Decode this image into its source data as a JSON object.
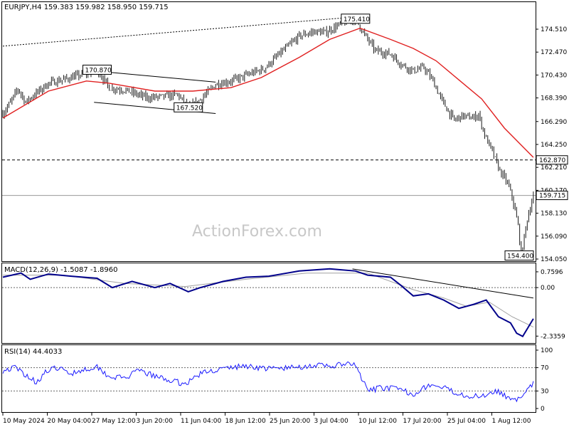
{
  "title": "EURJPY,H4  159.383 159.982 158.950 159.715",
  "watermark": "ActionForex.com",
  "colors": {
    "candle": "#1a1a1a",
    "ma": "#e02020",
    "macd": "#00008b",
    "signal": "#a0a0a0",
    "rsi": "#1a1aff",
    "ref_line": "#000000",
    "watermark": "#c8c8c8"
  },
  "chart_data": [
    {
      "type": "candlestick",
      "name": "EURJPY H4",
      "ylim": [
        154.05,
        176.6
      ],
      "y_ticks": [
        "174.510",
        "172.470",
        "170.430",
        "168.390",
        "166.290",
        "164.250",
        "162.210",
        "160.170",
        "158.130",
        "156.090",
        "154.050"
      ],
      "x_ticks": [
        "10 May 2024",
        "20 May 04:00",
        "27 May 12:00",
        "3 Jun 20:00",
        "11 Jun 04:00",
        "18 Jun 12:00",
        "25 Jun 20:00",
        "3 Jul 04:00",
        "10 Jul 12:00",
        "17 Jul 20:00",
        "25 Jul 04:00",
        "1 Aug 12:00"
      ],
      "key_points": [
        [
          0,
          167.0
        ],
        [
          5,
          168.0
        ],
        [
          10,
          169.2
        ],
        [
          15,
          168.0
        ],
        [
          20,
          168.6
        ],
        [
          30,
          169.7
        ],
        [
          45,
          170.2
        ],
        [
          55,
          170.6
        ],
        [
          62,
          170.87
        ],
        [
          70,
          169.3
        ],
        [
          80,
          169.1
        ],
        [
          95,
          168.4
        ],
        [
          105,
          168.5
        ],
        [
          115,
          168.7
        ],
        [
          122,
          167.52
        ],
        [
          128,
          168.0
        ],
        [
          140,
          169.6
        ],
        [
          150,
          169.9
        ],
        [
          160,
          170.4
        ],
        [
          172,
          171.0
        ],
        [
          182,
          172.3
        ],
        [
          195,
          173.9
        ],
        [
          205,
          174.3
        ],
        [
          212,
          174.2
        ],
        [
          220,
          174.8
        ],
        [
          228,
          175.3
        ],
        [
          232,
          175.41
        ],
        [
          238,
          174.0
        ],
        [
          245,
          172.6
        ],
        [
          255,
          172.3
        ],
        [
          262,
          171.4
        ],
        [
          270,
          170.8
        ],
        [
          277,
          171.1
        ],
        [
          283,
          169.9
        ],
        [
          288,
          168.4
        ],
        [
          293,
          167.2
        ],
        [
          297,
          166.4
        ],
        [
          302,
          166.8
        ],
        [
          309,
          166.6
        ],
        [
          313,
          166.9
        ],
        [
          317,
          165.1
        ],
        [
          322,
          163.6
        ],
        [
          327,
          161.9
        ],
        [
          332,
          160.8
        ],
        [
          335,
          159.6
        ],
        [
          339,
          157.0
        ],
        [
          341,
          154.4
        ],
        [
          345,
          157.6
        ],
        [
          349,
          159.715
        ]
      ],
      "moving_average_points": [
        [
          0,
          166.6
        ],
        [
          30,
          169.0
        ],
        [
          55,
          169.9
        ],
        [
          70,
          169.7
        ],
        [
          100,
          169.0
        ],
        [
          125,
          169.0
        ],
        [
          150,
          169.3
        ],
        [
          170,
          170.2
        ],
        [
          195,
          172.0
        ],
        [
          215,
          173.6
        ],
        [
          235,
          174.6
        ],
        [
          255,
          173.6
        ],
        [
          270,
          172.8
        ],
        [
          285,
          171.7
        ],
        [
          300,
          170.0
        ],
        [
          315,
          168.3
        ],
        [
          330,
          165.7
        ],
        [
          349,
          163.1
        ]
      ],
      "horizontal_levels": [
        {
          "value": 162.87,
          "style": "dashed",
          "label": "162.870"
        },
        {
          "value": 159.715,
          "style": "solid",
          "label": "159.715"
        }
      ],
      "trendlines": [
        {
          "from": [
            0,
            173.0
          ],
          "to": [
            232,
            175.6
          ],
          "style": "dotted"
        },
        {
          "from": [
            60,
            170.8
          ],
          "to": [
            140,
            169.8
          ],
          "style": "solid"
        },
        {
          "from": [
            60,
            168.0
          ],
          "to": [
            140,
            167.0
          ],
          "style": "solid"
        }
      ],
      "annotations": [
        {
          "text": "175.410",
          "x": 232,
          "y": 175.41
        },
        {
          "text": "170.870",
          "x": 62,
          "y": 170.87
        },
        {
          "text": "167.520",
          "x": 122,
          "y": 167.52
        },
        {
          "text": "154.400",
          "x": 341,
          "y": 154.4
        }
      ]
    },
    {
      "type": "line",
      "name": "MACD",
      "label": "MACD(12,26,9) -1.5087 -1.8960",
      "ylim": [
        -2.6,
        1.1
      ],
      "y_ticks": [
        "0.7596",
        "0.00",
        "-2.3359"
      ],
      "macd_points": [
        [
          0,
          0.5
        ],
        [
          12,
          0.7
        ],
        [
          18,
          0.4
        ],
        [
          30,
          0.65
        ],
        [
          45,
          0.55
        ],
        [
          62,
          0.45
        ],
        [
          72,
          0.0
        ],
        [
          85,
          0.3
        ],
        [
          100,
          0.0
        ],
        [
          110,
          0.2
        ],
        [
          122,
          -0.2
        ],
        [
          130,
          0.0
        ],
        [
          145,
          0.3
        ],
        [
          160,
          0.5
        ],
        [
          175,
          0.55
        ],
        [
          195,
          0.8
        ],
        [
          215,
          0.9
        ],
        [
          232,
          0.8
        ],
        [
          240,
          0.6
        ],
        [
          255,
          0.5
        ],
        [
          262,
          0.1
        ],
        [
          270,
          -0.4
        ],
        [
          280,
          -0.3
        ],
        [
          290,
          -0.6
        ],
        [
          295,
          -0.8
        ],
        [
          300,
          -1.0
        ],
        [
          310,
          -0.8
        ],
        [
          318,
          -0.6
        ],
        [
          326,
          -1.4
        ],
        [
          334,
          -1.7
        ],
        [
          338,
          -2.2
        ],
        [
          342,
          -2.35
        ],
        [
          349,
          -1.5
        ]
      ],
      "signal_points": [
        [
          0,
          0.6
        ],
        [
          40,
          0.6
        ],
        [
          80,
          0.2
        ],
        [
          120,
          0.05
        ],
        [
          160,
          0.4
        ],
        [
          200,
          0.7
        ],
        [
          240,
          0.7
        ],
        [
          270,
          -0.1
        ],
        [
          290,
          -0.5
        ],
        [
          305,
          -0.9
        ],
        [
          320,
          -0.7
        ],
        [
          335,
          -1.4
        ],
        [
          349,
          -1.9
        ]
      ],
      "trendline": {
        "from": [
          230,
          0.9
        ],
        "to": [
          349,
          -0.5
        ]
      }
    },
    {
      "type": "line",
      "name": "RSI",
      "label": "RSI(14) 44.4033",
      "ylim": [
        0,
        100
      ],
      "y_ticks": [
        "100",
        "70",
        "30",
        "0"
      ],
      "levels": [
        70,
        30
      ],
      "points": [
        [
          0,
          65
        ],
        [
          8,
          70
        ],
        [
          15,
          58
        ],
        [
          22,
          45
        ],
        [
          28,
          62
        ],
        [
          36,
          70
        ],
        [
          44,
          60
        ],
        [
          52,
          66
        ],
        [
          62,
          72
        ],
        [
          70,
          55
        ],
        [
          80,
          52
        ],
        [
          90,
          65
        ],
        [
          100,
          55
        ],
        [
          110,
          48
        ],
        [
          120,
          42
        ],
        [
          130,
          60
        ],
        [
          140,
          66
        ],
        [
          150,
          70
        ],
        [
          160,
          73
        ],
        [
          175,
          68
        ],
        [
          190,
          70
        ],
        [
          205,
          74
        ],
        [
          215,
          72
        ],
        [
          225,
          76
        ],
        [
          232,
          74
        ],
        [
          240,
          30
        ],
        [
          250,
          36
        ],
        [
          260,
          33
        ],
        [
          270,
          25
        ],
        [
          280,
          40
        ],
        [
          290,
          35
        ],
        [
          295,
          30
        ],
        [
          300,
          26
        ],
        [
          310,
          20
        ],
        [
          318,
          24
        ],
        [
          324,
          32
        ],
        [
          330,
          22
        ],
        [
          336,
          18
        ],
        [
          341,
          15
        ],
        [
          349,
          44.4
        ]
      ]
    }
  ]
}
